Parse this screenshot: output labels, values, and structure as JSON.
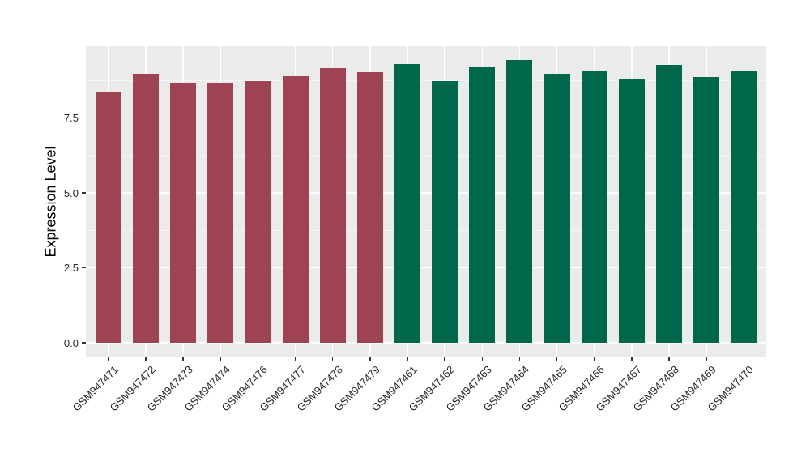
{
  "chart_data": {
    "type": "bar",
    "title": "",
    "xlabel": "",
    "ylabel": "Expression Level",
    "categories": [
      "GSM947471",
      "GSM947472",
      "GSM947473",
      "GSM947474",
      "GSM947476",
      "GSM947477",
      "GSM947478",
      "GSM947479",
      "GSM947461",
      "GSM947462",
      "GSM947463",
      "GSM947464",
      "GSM947465",
      "GSM947466",
      "GSM947467",
      "GSM947468",
      "GSM947469",
      "GSM947470"
    ],
    "values": [
      8.37,
      8.97,
      8.69,
      8.66,
      8.74,
      8.9,
      9.15,
      9.03,
      9.3,
      8.72,
      9.2,
      9.43,
      8.97,
      9.07,
      8.79,
      9.26,
      8.87,
      9.08
    ],
    "bar_groups": [
      "A",
      "A",
      "A",
      "A",
      "A",
      "A",
      "A",
      "A",
      "B",
      "B",
      "B",
      "B",
      "B",
      "B",
      "B",
      "B",
      "B",
      "B"
    ],
    "group_colors": {
      "A": "#9E4352",
      "B": "#00684A"
    },
    "yticks": [
      0.0,
      2.5,
      5.0,
      7.5
    ],
    "ytick_labels": [
      "0.0",
      "2.5",
      "5.0",
      "7.5"
    ],
    "minor_gridlines": [
      1.25,
      3.75,
      6.25,
      8.75
    ],
    "ylim": [
      -0.49,
      9.89
    ],
    "grid": "on",
    "legend": "none",
    "panel_bg": "#EBEBEB",
    "major_grid_color": "#FFFFFF",
    "minor_grid_color": "#F5F5F5",
    "axis_text_color": "#262626",
    "tick_mark_color": "#333333"
  }
}
